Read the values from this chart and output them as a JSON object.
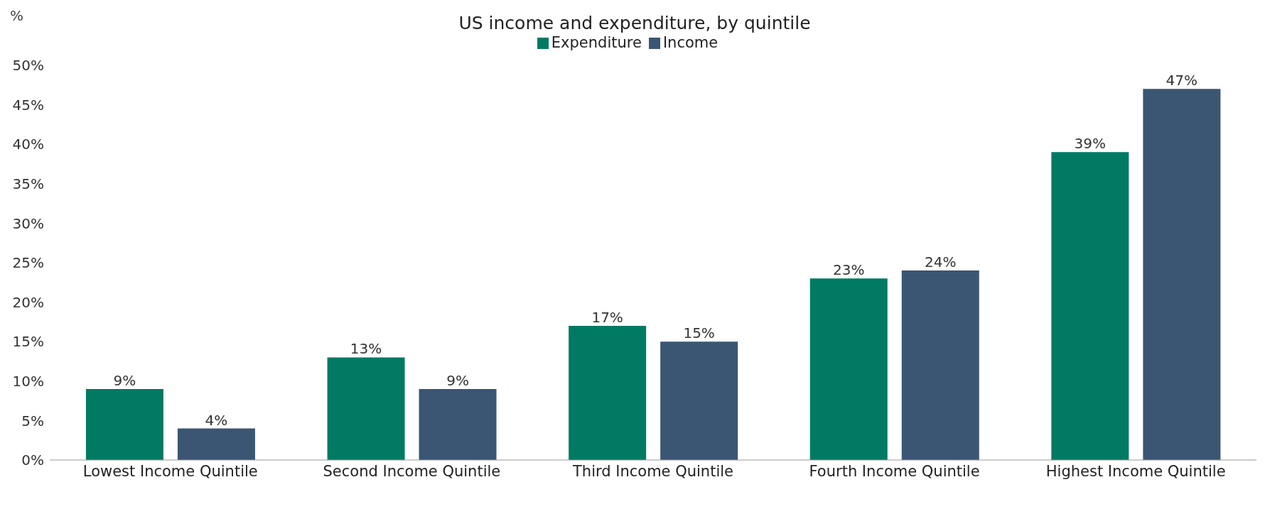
{
  "chart_data": {
    "type": "bar",
    "title": "US income and expenditure, by quintile",
    "ylabel": "%",
    "categories": [
      "Lowest Income Quintile",
      "Second Income Quintile",
      "Third Income Quintile",
      "Fourth Income Quintile",
      "Highest Income Quintile"
    ],
    "series": [
      {
        "name": "Expenditure",
        "color": "#007a63",
        "values": [
          9,
          13,
          17,
          23,
          39
        ],
        "value_labels": [
          "9%",
          "13%",
          "17%",
          "23%",
          "39%"
        ]
      },
      {
        "name": "Income",
        "color": "#3a5673",
        "values": [
          4,
          9,
          15,
          24,
          47
        ],
        "value_labels": [
          "4%",
          "9%",
          "15%",
          "24%",
          "47%"
        ]
      }
    ],
    "ylim": [
      0,
      50
    ],
    "yticks": [
      {
        "value": 0,
        "label": "0%"
      },
      {
        "value": 5,
        "label": "5%"
      },
      {
        "value": 10,
        "label": "10%"
      },
      {
        "value": 15,
        "label": "15%"
      },
      {
        "value": 20,
        "label": "20%"
      },
      {
        "value": 25,
        "label": "25%"
      },
      {
        "value": 30,
        "label": "30%"
      },
      {
        "value": 35,
        "label": "35%"
      },
      {
        "value": 40,
        "label": "40%"
      },
      {
        "value": 45,
        "label": "45%"
      },
      {
        "value": 50,
        "label": "50%"
      }
    ],
    "grid": false,
    "legend": "top"
  }
}
